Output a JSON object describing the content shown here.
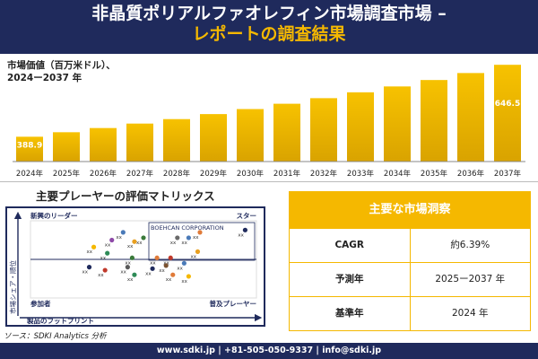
{
  "header": {
    "title_line1": "非晶質ポリアルファオレフィン市場調査市場 –",
    "title_line2": "レポートの調査結果"
  },
  "market": {
    "label_line1": "市場価値（百万米ドル）、",
    "label_line2": "2024ー2037 年"
  },
  "chart_data": {
    "type": "bar",
    "categories": [
      "2024年",
      "2025年",
      "2026年",
      "2027年",
      "2028年",
      "2029年",
      "2030年",
      "2031年",
      "2032年",
      "2033年",
      "2034年",
      "2035年",
      "2036年",
      "2037年"
    ],
    "values": [
      388.9,
      405,
      420,
      436,
      452,
      470,
      488,
      507,
      527,
      548,
      569,
      592,
      617,
      646.5
    ],
    "value_labels": {
      "0": "388.9",
      "13": "646.5"
    },
    "ylim": [
      300,
      660
    ],
    "colors": {
      "bar_top": "#f7c200",
      "bar_bottom": "#d9a300"
    }
  },
  "matrix": {
    "title": "主要プレーヤーの評価マトリックス",
    "quadrants": {
      "top_left": "新興のリーダー",
      "top_right": "スター",
      "bottom_left": "参加者",
      "bottom_right": "普及プレーヤー"
    },
    "y_axis": "市場シェア・順位",
    "x_axis": "製品のフットプリント",
    "highlight": "BOEHCAN CORPORATION",
    "point_label": "xx",
    "points": [
      {
        "x": 0.41,
        "y": 0.85,
        "color": "#4a7ab8"
      },
      {
        "x": 0.75,
        "y": 0.85,
        "color": "#e07b39"
      },
      {
        "x": 0.95,
        "y": 0.88,
        "color": "#1f2a5c"
      },
      {
        "x": 0.36,
        "y": 0.75,
        "color": "#8e4aa8"
      },
      {
        "x": 0.46,
        "y": 0.73,
        "color": "#e8a020"
      },
      {
        "x": 0.5,
        "y": 0.78,
        "color": "#3a7a3a"
      },
      {
        "x": 0.28,
        "y": 0.66,
        "color": "#f5b800"
      },
      {
        "x": 0.65,
        "y": 0.78,
        "color": "#6a6a6a"
      },
      {
        "x": 0.7,
        "y": 0.78,
        "color": "#4a7ab8"
      },
      {
        "x": 0.34,
        "y": 0.58,
        "color": "#2e8b57"
      },
      {
        "x": 0.45,
        "y": 0.52,
        "color": "#3a7a3a"
      },
      {
        "x": 0.56,
        "y": 0.52,
        "color": "#e07b39"
      },
      {
        "x": 0.62,
        "y": 0.52,
        "color": "#c0392b"
      },
      {
        "x": 0.74,
        "y": 0.6,
        "color": "#e8a020"
      },
      {
        "x": 0.68,
        "y": 0.45,
        "color": "#4a7ab8"
      },
      {
        "x": 0.26,
        "y": 0.4,
        "color": "#1f2a5c"
      },
      {
        "x": 0.33,
        "y": 0.36,
        "color": "#c0392b"
      },
      {
        "x": 0.43,
        "y": 0.4,
        "color": "#5a5a5a"
      },
      {
        "x": 0.6,
        "y": 0.42,
        "color": "#7a5230"
      },
      {
        "x": 0.46,
        "y": 0.3,
        "color": "#2e8b57"
      },
      {
        "x": 0.54,
        "y": 0.38,
        "color": "#1f2a5c"
      },
      {
        "x": 0.63,
        "y": 0.3,
        "color": "#e07b39"
      },
      {
        "x": 0.7,
        "y": 0.28,
        "color": "#f5b800"
      }
    ]
  },
  "source": "ソース：SDKI Analytics 分析",
  "stats": {
    "header": "主要な市場洞察",
    "rows": [
      {
        "key": "CAGR",
        "value": "約6.39%"
      },
      {
        "key": "予測年",
        "value": "2025ー2037 年"
      },
      {
        "key": "基準年",
        "value": "2024 年"
      }
    ]
  },
  "footer": "www.sdki.jp | +81-505-050-9337 | info@sdki.jp"
}
